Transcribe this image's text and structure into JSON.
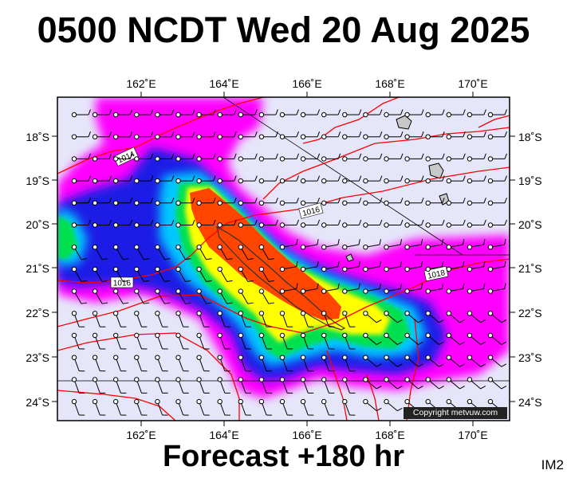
{
  "title": "0500 NCDT Wed 20 Aug 2025",
  "footer": "Forecast +180 hr",
  "image_code": "IM2",
  "copyright": "Copyright metvuw.com",
  "map": {
    "lon_labels": [
      "162˚E",
      "164˚E",
      "166˚E",
      "168˚E",
      "170˚E"
    ],
    "lat_labels": [
      "18˚S",
      "19˚S",
      "20˚S",
      "21˚S",
      "22˚S",
      "23˚S",
      "24˚S"
    ],
    "isobar_labels": [
      "1014",
      "1016",
      "1016",
      "1018"
    ],
    "colors": {
      "background": "#e6e6fa",
      "heavy": "#ff4500",
      "magenta": "#ff00ff",
      "blue": "#1e1ee6",
      "cyan": "#00c8ff",
      "green": "#00e050",
      "yellow": "#ffff00",
      "isobar": "#ff0000",
      "land": "#c8c8c8"
    }
  }
}
